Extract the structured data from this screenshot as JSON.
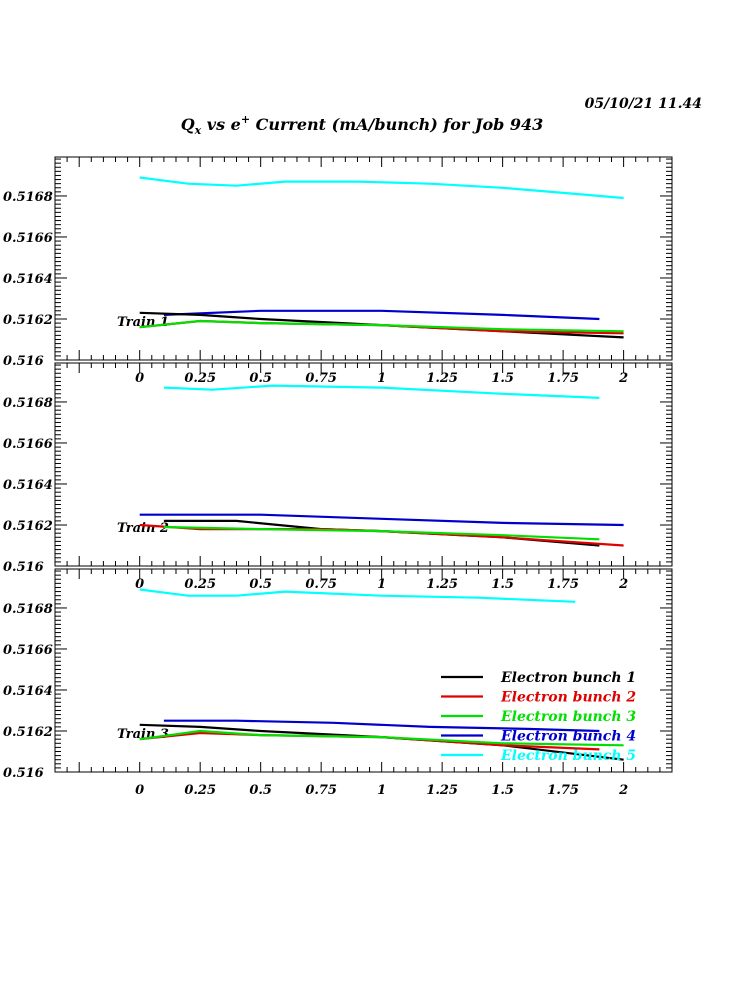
{
  "header": {
    "timestamp": "05/10/21   11.44",
    "title_parts": {
      "q": "Q",
      "q_sub": "x",
      "vs": " vs e",
      "e_sup": "+",
      "rest": " Current (mA/bunch) for Job 943"
    }
  },
  "chart_data": {
    "type": "line",
    "xlim": [
      -0.35,
      2.2
    ],
    "ylim": [
      0.516,
      0.51699
    ],
    "x_ticks": [
      0,
      0.25,
      0.5,
      0.75,
      1,
      1.25,
      1.5,
      1.75,
      2
    ],
    "x_tick_labels": [
      "0",
      "0.25",
      "0.5",
      "0.75",
      "1",
      "1.25",
      "1.5",
      "1.75",
      "2"
    ],
    "y_ticks": [
      0.516,
      0.5162,
      0.5164,
      0.5166,
      0.5168
    ],
    "y_tick_labels": [
      "0.516",
      "0.5162",
      "0.5164",
      "0.5166",
      "0.5168"
    ],
    "legend": {
      "placement": "bottom-right of third panel",
      "entries": [
        {
          "label": "Electron bunch 1",
          "color": "#000000"
        },
        {
          "label": "Electron bunch 2",
          "color": "#e00000"
        },
        {
          "label": "Electron bunch 3",
          "color": "#00e000"
        },
        {
          "label": "Electron bunch 4",
          "color": "#0000cc"
        },
        {
          "label": "Electron bunch 5",
          "color": "#00ffff"
        }
      ]
    },
    "panels": [
      {
        "label": "Train 1",
        "series": [
          {
            "color": "#00ffff",
            "points": [
              [
                0,
                0.51689
              ],
              [
                0.2,
                0.51686
              ],
              [
                0.4,
                0.51685
              ],
              [
                0.6,
                0.51687
              ],
              [
                0.9,
                0.51687
              ],
              [
                1.2,
                0.51686
              ],
              [
                1.5,
                0.51684
              ],
              [
                1.8,
                0.51681
              ],
              [
                2,
                0.51679
              ]
            ]
          },
          {
            "color": "#0000cc",
            "points": [
              [
                0.1,
                0.51622
              ],
              [
                0.5,
                0.51624
              ],
              [
                1,
                0.51624
              ],
              [
                1.5,
                0.51622
              ],
              [
                1.9,
                0.5162
              ]
            ]
          },
          {
            "color": "#000000",
            "points": [
              [
                0,
                0.51623
              ],
              [
                0.25,
                0.51622
              ],
              [
                0.5,
                0.5162
              ],
              [
                1,
                0.51617
              ],
              [
                1.5,
                0.51614
              ],
              [
                2,
                0.51611
              ]
            ]
          },
          {
            "color": "#e00000",
            "points": [
              [
                0,
                0.51616
              ],
              [
                0.25,
                0.51619
              ],
              [
                0.5,
                0.51618
              ],
              [
                1,
                0.51617
              ],
              [
                1.5,
                0.51614
              ],
              [
                2,
                0.51613
              ]
            ]
          },
          {
            "color": "#00e000",
            "points": [
              [
                0,
                0.51616
              ],
              [
                0.25,
                0.51619
              ],
              [
                0.5,
                0.51618
              ],
              [
                1,
                0.51617
              ],
              [
                1.5,
                0.51615
              ],
              [
                2,
                0.51614
              ]
            ]
          }
        ]
      },
      {
        "label": "Train 2",
        "series": [
          {
            "color": "#00ffff",
            "points": [
              [
                0.1,
                0.51687
              ],
              [
                0.3,
                0.51686
              ],
              [
                0.55,
                0.51688
              ],
              [
                1,
                0.51687
              ],
              [
                1.5,
                0.51684
              ],
              [
                1.9,
                0.51682
              ]
            ]
          },
          {
            "color": "#0000cc",
            "points": [
              [
                0,
                0.51625
              ],
              [
                0.5,
                0.51625
              ],
              [
                1,
                0.51623
              ],
              [
                1.5,
                0.51621
              ],
              [
                2,
                0.5162
              ]
            ]
          },
          {
            "color": "#000000",
            "points": [
              [
                0.1,
                0.51622
              ],
              [
                0.4,
                0.51622
              ],
              [
                0.75,
                0.51618
              ],
              [
                1,
                0.51617
              ],
              [
                1.5,
                0.51614
              ],
              [
                1.9,
                0.5161
              ]
            ]
          },
          {
            "color": "#e00000",
            "points": [
              [
                0,
                0.5162
              ],
              [
                0.25,
                0.51618
              ],
              [
                0.75,
                0.51618
              ],
              [
                1,
                0.51617
              ],
              [
                1.5,
                0.51614
              ],
              [
                2,
                0.5161
              ]
            ]
          },
          {
            "color": "#00e000",
            "points": [
              [
                0.1,
                0.51619
              ],
              [
                0.5,
                0.51618
              ],
              [
                1,
                0.51617
              ],
              [
                1.5,
                0.51615
              ],
              [
                1.9,
                0.51613
              ]
            ]
          }
        ]
      },
      {
        "label": "Train 3",
        "series": [
          {
            "color": "#00ffff",
            "points": [
              [
                0,
                0.51689
              ],
              [
                0.2,
                0.51686
              ],
              [
                0.4,
                0.51686
              ],
              [
                0.6,
                0.51688
              ],
              [
                1,
                0.51686
              ],
              [
                1.4,
                0.51685
              ],
              [
                1.8,
                0.51683
              ]
            ]
          },
          {
            "color": "#0000cc",
            "points": [
              [
                0.1,
                0.51625
              ],
              [
                0.4,
                0.51625
              ],
              [
                0.8,
                0.51624
              ],
              [
                1.2,
                0.51622
              ],
              [
                1.6,
                0.51621
              ],
              [
                1.9,
                0.5162
              ]
            ]
          },
          {
            "color": "#000000",
            "points": [
              [
                0,
                0.51623
              ],
              [
                0.25,
                0.51622
              ],
              [
                0.5,
                0.5162
              ],
              [
                1,
                0.51617
              ],
              [
                1.5,
                0.51613
              ],
              [
                2,
                0.51606
              ]
            ]
          },
          {
            "color": "#e00000",
            "points": [
              [
                0,
                0.51616
              ],
              [
                0.25,
                0.51619
              ],
              [
                0.5,
                0.51618
              ],
              [
                1,
                0.51617
              ],
              [
                1.5,
                0.51613
              ],
              [
                1.9,
                0.51611
              ]
            ]
          },
          {
            "color": "#00e000",
            "points": [
              [
                0,
                0.51616
              ],
              [
                0.25,
                0.5162
              ],
              [
                0.5,
                0.51618
              ],
              [
                1,
                0.51617
              ],
              [
                1.5,
                0.51614
              ],
              [
                2,
                0.51613
              ]
            ]
          }
        ]
      }
    ]
  }
}
